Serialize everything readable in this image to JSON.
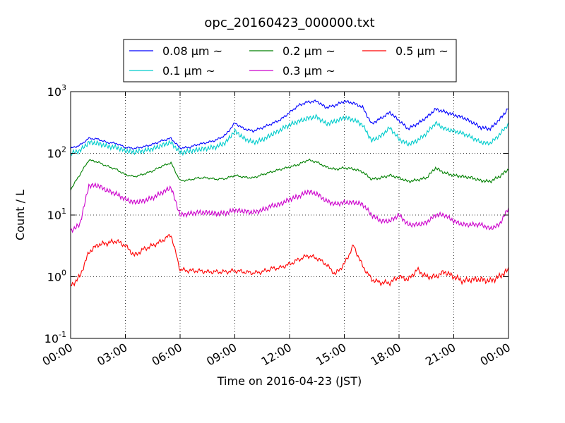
{
  "chart_data": {
    "type": "line",
    "title": "opc_20160423_000000.txt",
    "xlabel": "Time on 2016-04-23 (JST)",
    "ylabel": "Count / L",
    "y_scale": "log",
    "ylim": [
      0.1,
      1000
    ],
    "xlim": [
      "00:00",
      "24:00"
    ],
    "x_ticks": [
      "00:00",
      "03:00",
      "06:00",
      "09:00",
      "12:00",
      "15:00",
      "18:00",
      "21:00",
      "00:00"
    ],
    "y_ticks": [
      {
        "base": "10",
        "exp": "-1"
      },
      {
        "base": "10",
        "exp": "0"
      },
      {
        "base": "10",
        "exp": "1"
      },
      {
        "base": "10",
        "exp": "2"
      },
      {
        "base": "10",
        "exp": "3"
      }
    ],
    "grid": true,
    "legend_position": "top-center",
    "x_hours": [
      0,
      0.5,
      1,
      1.5,
      2,
      2.5,
      3,
      3.5,
      4,
      4.5,
      5,
      5.5,
      6,
      6.5,
      7,
      7.5,
      8,
      8.5,
      9,
      9.5,
      10,
      10.5,
      11,
      11.5,
      12,
      12.5,
      13,
      13.5,
      14,
      14.5,
      15,
      15.5,
      16,
      16.5,
      17,
      17.5,
      18,
      18.5,
      19,
      19.5,
      20,
      20.5,
      21,
      21.5,
      22,
      22.5,
      23,
      23.5,
      24
    ],
    "series": [
      {
        "name": "0.08 μm ~",
        "color": "#0000ff",
        "values": [
          120,
          135,
          175,
          170,
          150,
          145,
          125,
          120,
          128,
          140,
          160,
          175,
          122,
          125,
          140,
          150,
          165,
          200,
          310,
          250,
          230,
          260,
          300,
          350,
          460,
          600,
          680,
          700,
          550,
          600,
          700,
          650,
          560,
          300,
          370,
          460,
          340,
          250,
          300,
          380,
          520,
          470,
          420,
          380,
          320,
          260,
          250,
          350,
          540
        ]
      },
      {
        "name": "0.1 μm ~",
        "color": "#00cccc",
        "values": [
          100,
          110,
          150,
          145,
          130,
          125,
          110,
          105,
          110,
          118,
          135,
          150,
          103,
          108,
          115,
          120,
          128,
          150,
          230,
          175,
          150,
          165,
          200,
          240,
          290,
          330,
          370,
          390,
          300,
          330,
          380,
          350,
          290,
          160,
          190,
          260,
          170,
          140,
          160,
          210,
          310,
          250,
          230,
          210,
          180,
          150,
          145,
          200,
          300
        ]
      },
      {
        "name": "0.2 μm ~",
        "color": "#008000",
        "values": [
          26,
          45,
          78,
          72,
          62,
          55,
          45,
          42,
          46,
          52,
          62,
          70,
          36,
          37,
          40,
          40,
          38,
          39,
          44,
          41,
          40,
          45,
          50,
          55,
          60,
          66,
          78,
          72,
          60,
          55,
          58,
          56,
          50,
          38,
          40,
          44,
          40,
          35,
          37,
          40,
          58,
          48,
          44,
          42,
          40,
          36,
          35,
          42,
          55
        ]
      },
      {
        "name": "0.3 μm ~",
        "color": "#cc00cc",
        "values": [
          5.5,
          7,
          30,
          30,
          25,
          22,
          18,
          16,
          17,
          19,
          23,
          28,
          10,
          10.5,
          11,
          11,
          10.5,
          10.8,
          12,
          11.5,
          11,
          12,
          14,
          15,
          18,
          20,
          24,
          22,
          17,
          15,
          16,
          16,
          15,
          10,
          8,
          8,
          10,
          7,
          7,
          7.5,
          10,
          10,
          8,
          7,
          7,
          7,
          6,
          7,
          13
        ]
      },
      {
        "name": "0.5 μm ~",
        "color": "#ff0000",
        "values": [
          0.7,
          1.0,
          2.5,
          3.3,
          3.5,
          3.8,
          3.2,
          2.2,
          2.8,
          3.2,
          3.8,
          4.8,
          1.3,
          1.25,
          1.25,
          1.2,
          1.2,
          1.2,
          1.25,
          1.2,
          1.15,
          1.2,
          1.35,
          1.4,
          1.6,
          1.9,
          2.2,
          2.0,
          1.6,
          1.1,
          1.6,
          3.2,
          1.5,
          0.9,
          0.8,
          0.8,
          1.0,
          0.9,
          1.3,
          1.0,
          1.0,
          1.2,
          1.0,
          0.85,
          0.9,
          0.9,
          0.85,
          1.0,
          1.3
        ]
      }
    ]
  }
}
